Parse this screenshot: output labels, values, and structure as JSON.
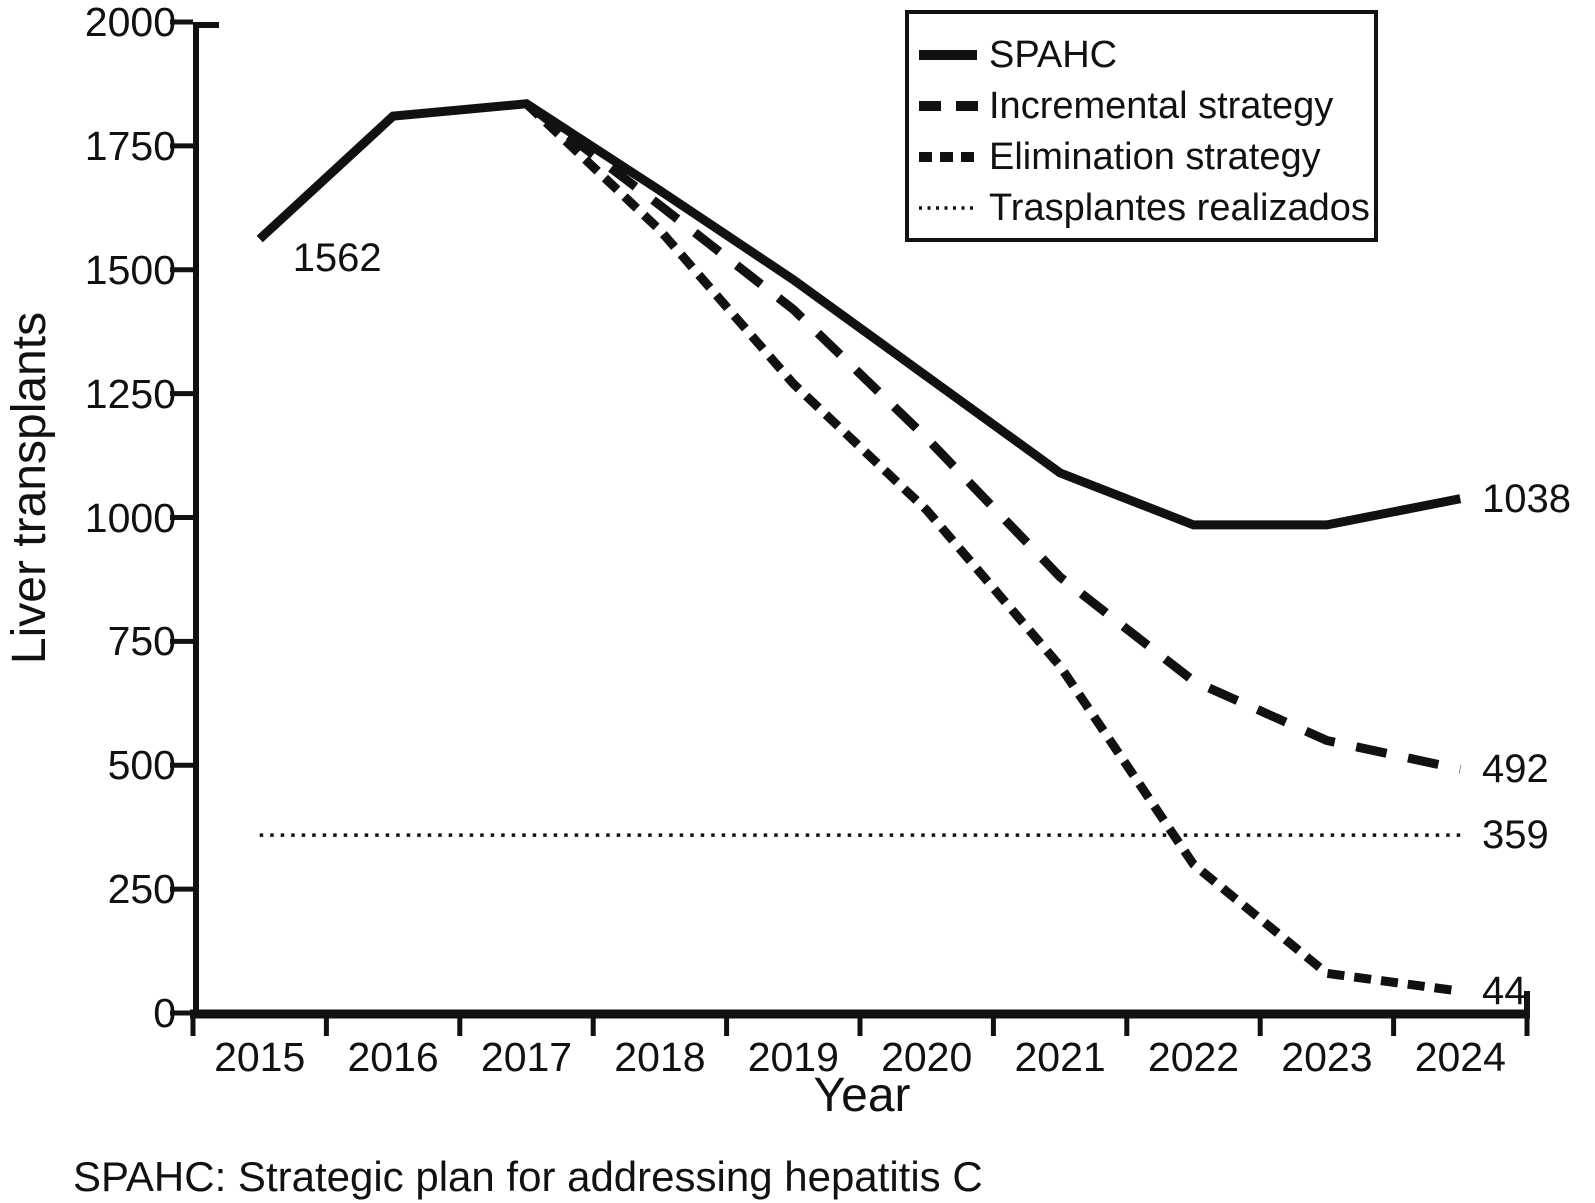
{
  "chart_data": {
    "type": "line",
    "title": "",
    "xlabel": "Year",
    "ylabel": "Liver transplants",
    "x_categories": [
      "2015",
      "2016",
      "2017",
      "2018",
      "2019",
      "2020",
      "2021",
      "2022",
      "2023",
      "2024"
    ],
    "y_ticks": [
      0,
      250,
      500,
      750,
      1000,
      1250,
      1500,
      1750,
      2000
    ],
    "ylim": [
      0,
      2000
    ],
    "grid": false,
    "legend_position": "top-right",
    "line_color": "#111111",
    "background_color": "#ffffff",
    "series": [
      {
        "name": "SPAHC",
        "line_style": "solid",
        "x": [
          2015,
          2016,
          2017,
          2018,
          2019,
          2020,
          2021,
          2022,
          2023,
          2024
        ],
        "values": [
          1562,
          1810,
          1835,
          1660,
          1480,
          1285,
          1090,
          985,
          985,
          1038
        ]
      },
      {
        "name": "Incremental strategy",
        "line_style": "dashed-long",
        "x": [
          2017,
          2018,
          2019,
          2020,
          2021,
          2022,
          2023,
          2024
        ],
        "values": [
          1835,
          1630,
          1420,
          1160,
          880,
          670,
          550,
          492
        ]
      },
      {
        "name": "Elimination strategy",
        "line_style": "dashed-short",
        "x": [
          2017,
          2018,
          2019,
          2020,
          2021,
          2022,
          2023,
          2024
        ],
        "values": [
          1835,
          1580,
          1270,
          1015,
          700,
          300,
          80,
          44
        ]
      },
      {
        "name": "Trasplantes realizados",
        "line_style": "dotted",
        "x": [
          2015,
          2024
        ],
        "values": [
          359,
          359
        ]
      }
    ],
    "annotations": [
      {
        "text": "1562",
        "year": 2015,
        "value": 1562,
        "placement": "below-right"
      },
      {
        "text": "1038",
        "year": 2024,
        "value": 1038,
        "placement": "right"
      },
      {
        "text": "492",
        "year": 2024,
        "value": 492,
        "placement": "right"
      },
      {
        "text": "359",
        "year": 2024,
        "value": 359,
        "placement": "right"
      },
      {
        "text": "44",
        "year": 2024,
        "value": 44,
        "placement": "right"
      }
    ],
    "footnote": "SPAHC: Strategic plan for addressing hepatitis C"
  }
}
